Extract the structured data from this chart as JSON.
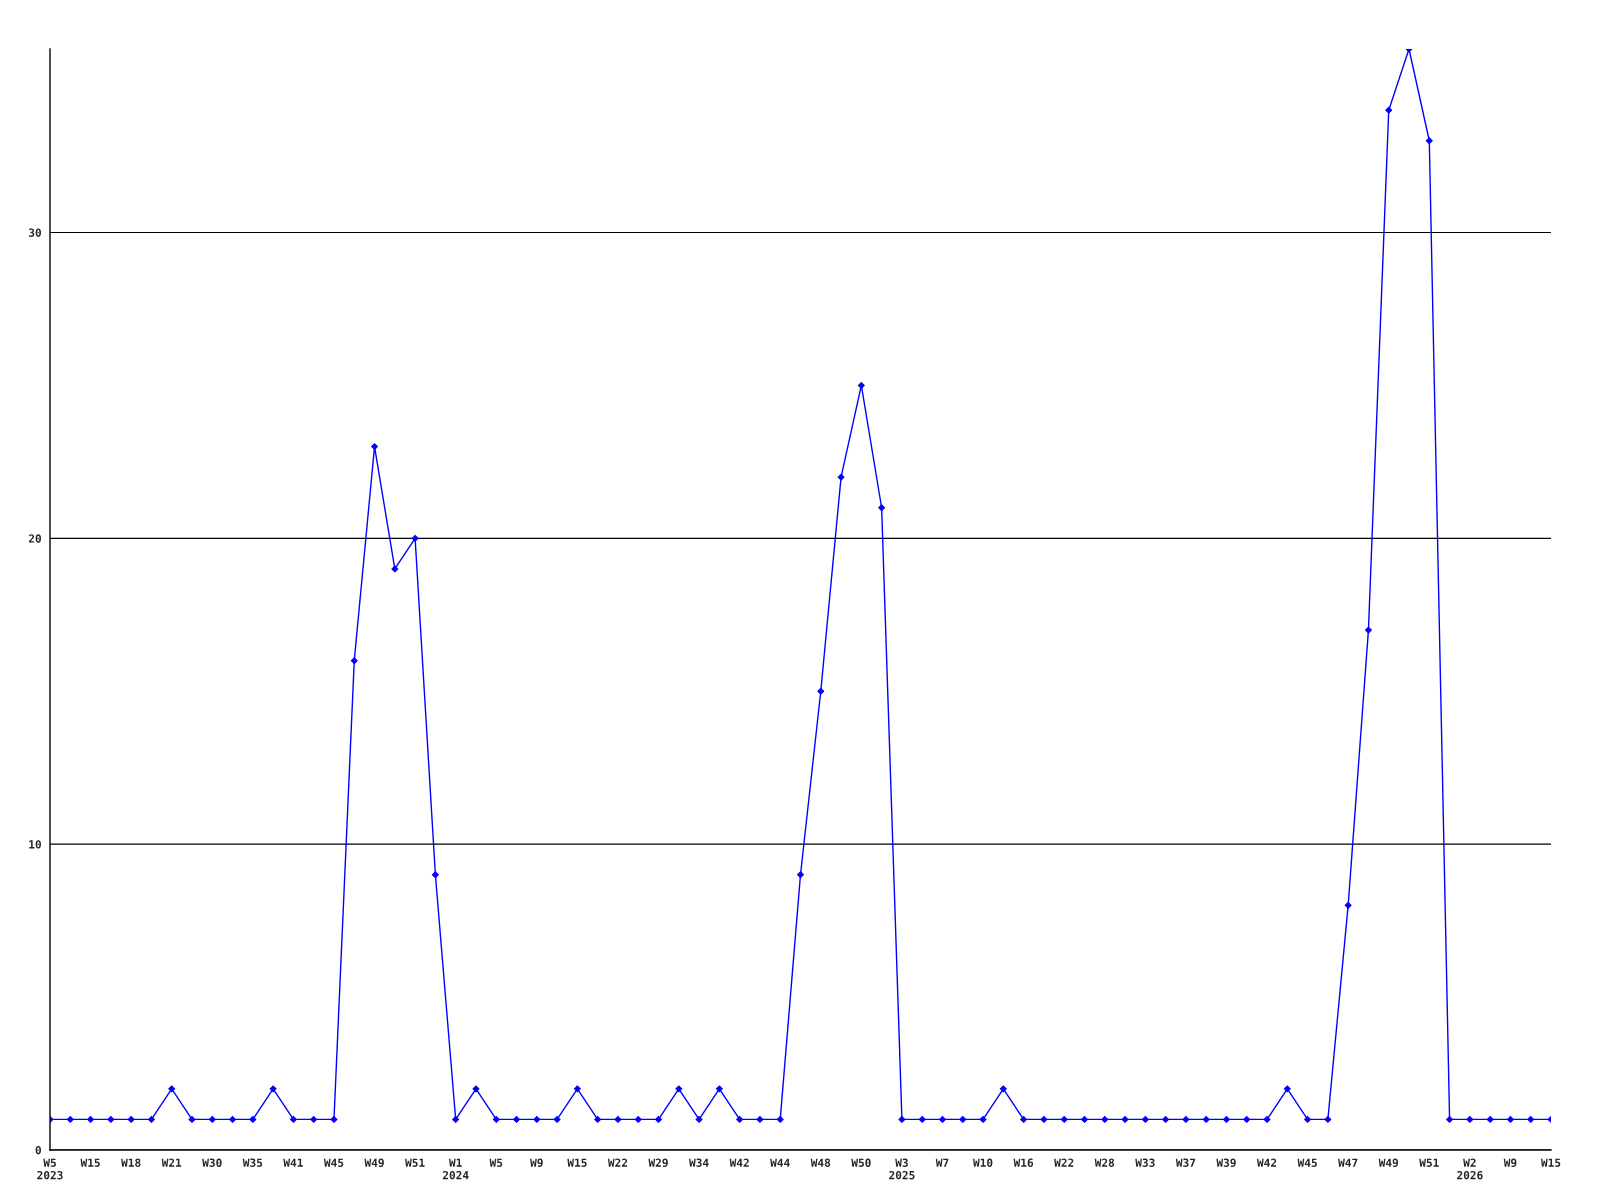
{
  "chart_data": {
    "type": "line",
    "categories": [
      "W5\n2023",
      null,
      "W15",
      null,
      "W18",
      null,
      "W21",
      null,
      "W30",
      null,
      "W35",
      null,
      "W41",
      null,
      "W45",
      null,
      "W49",
      null,
      "W51",
      null,
      "W1\n2024",
      null,
      "W5",
      null,
      "W9",
      null,
      "W15",
      null,
      "W22",
      null,
      "W29",
      null,
      "W34",
      null,
      "W42",
      null,
      "W44",
      null,
      "W48",
      null,
      "W50",
      null,
      "W3\n2025",
      null,
      "W7",
      null,
      "W10",
      null,
      "W16",
      null,
      "W22",
      null,
      "W28",
      null,
      "W33",
      null,
      "W37",
      null,
      "W39",
      null,
      "W42",
      null,
      "W45",
      null,
      "W47",
      null,
      "W49",
      null,
      "W51",
      null,
      "W2\n2026",
      null,
      "W9",
      null,
      "W15"
    ],
    "series": [
      {
        "color": "#0000ff",
        "values": [
          1,
          1,
          1,
          1,
          1,
          1,
          2,
          1,
          1,
          1,
          1,
          2,
          1,
          1,
          1,
          16,
          23,
          19,
          20,
          9,
          1,
          2,
          1,
          1,
          1,
          1,
          2,
          1,
          1,
          1,
          1,
          2,
          1,
          2,
          1,
          1,
          1,
          9,
          15,
          22,
          25,
          21,
          1,
          1,
          1,
          1,
          1,
          2,
          1,
          1,
          1,
          1,
          1,
          1,
          1,
          1,
          1,
          1,
          1,
          1,
          1,
          2,
          1,
          1,
          8,
          17,
          34,
          36,
          33,
          1,
          1,
          1,
          1,
          1,
          1
        ]
      }
    ],
    "ylim": [
      0,
      36
    ],
    "yticks": [
      0,
      10,
      20,
      30
    ],
    "grid": "y",
    "marker": "diamond",
    "line_style": "solid",
    "legend": false
  }
}
